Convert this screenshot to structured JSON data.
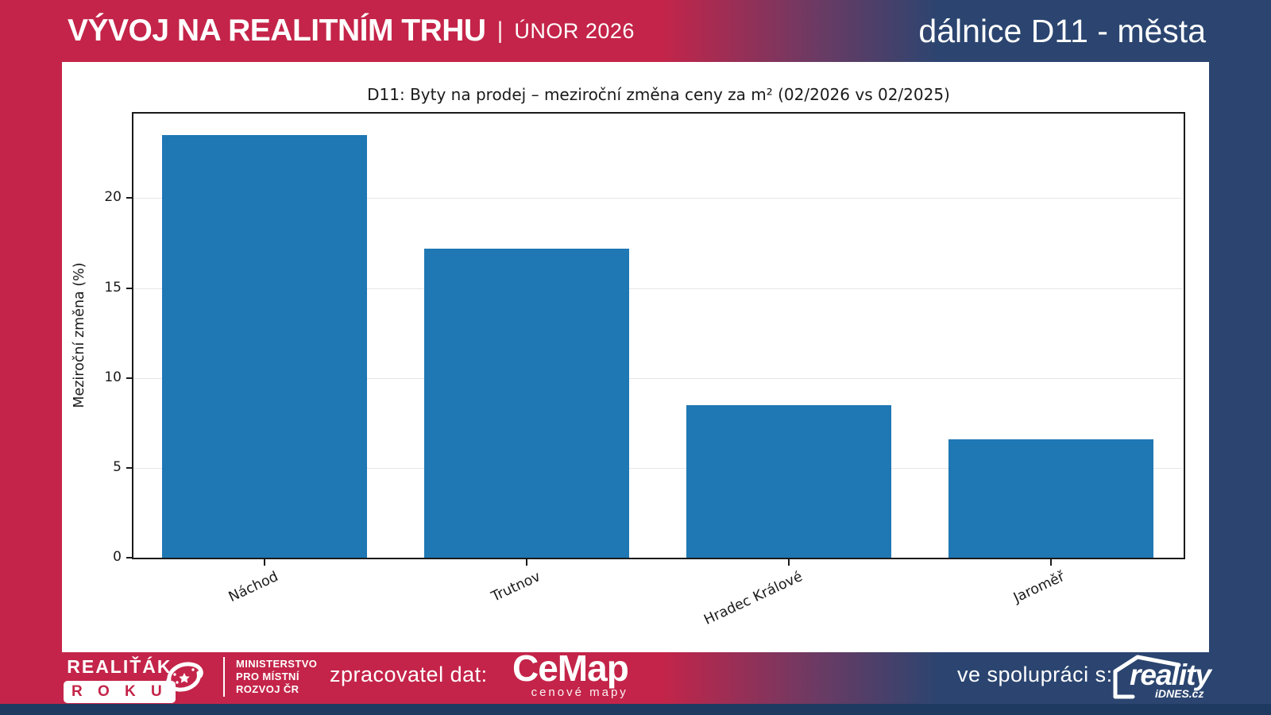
{
  "header": {
    "title": "VÝVOJ NA REALITNÍM TRHU",
    "separator": "|",
    "subtitle": "ÚNOR 2026",
    "right_title": "dálnice D11 - města"
  },
  "chart_data": {
    "type": "bar",
    "title": "D11: Byty na prodej – meziroční změna ceny za m² (02/2026 vs 02/2025)",
    "categories": [
      "Náchod",
      "Trutnov",
      "Hradec Králové",
      "Jaroměř"
    ],
    "values": [
      23.5,
      17.2,
      8.5,
      6.6
    ],
    "xlabel": "",
    "ylabel": "Meziroční změna (%)",
    "ylim": [
      0,
      24.7
    ],
    "yticks": [
      0,
      5,
      10,
      15,
      20
    ],
    "grid": true,
    "legend": null,
    "bar_color": "#1f77b4"
  },
  "footer": {
    "realitak": {
      "line1": "REALIŤÁK",
      "line2": "R O K U"
    },
    "ministry": {
      "lines": [
        "MINISTERSTVO",
        "PRO MÍSTNÍ",
        "ROZVOJ ČR"
      ]
    },
    "data_provider_label": "zpracovatel dat:",
    "cemap": {
      "name": "CeMap",
      "tagline": "cenové mapy"
    },
    "partner_label": "ve spolupráci s:",
    "reality": {
      "name": "reality",
      "sub": "iDNES.cz"
    }
  },
  "colors": {
    "crimson": "#c42449",
    "navy": "#2b4570",
    "navy_dark": "#1f3a61",
    "bar": "#1f77b4",
    "grid": "#e6e6e6"
  }
}
